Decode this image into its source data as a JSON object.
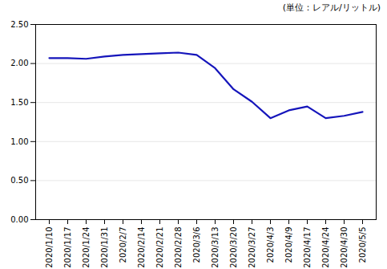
{
  "chart_data": {
    "type": "line",
    "annotations": [
      "(単位：レアル/リットル)"
    ],
    "categories": [
      "2020/1/10",
      "2020/1/17",
      "2020/1/24",
      "2020/1/31",
      "2020/2/7",
      "2020/2/14",
      "2020/2/21",
      "2020/2/28",
      "2020/3/6",
      "2020/3/13",
      "2020/3/20",
      "2020/3/27",
      "2020/4/3",
      "2020/4/9",
      "2020/4/17",
      "2020/4/24",
      "2020/4/30",
      "2020/5/5"
    ],
    "values": [
      2.07,
      2.07,
      2.06,
      2.09,
      2.11,
      2.12,
      2.13,
      2.14,
      2.11,
      1.94,
      1.67,
      1.51,
      1.3,
      1.4,
      1.45,
      1.3,
      1.33,
      1.38
    ],
    "color": "#1515bb",
    "ylim": [
      0.0,
      2.5
    ],
    "yticks": [
      {
        "value": 0.0,
        "label": "0.00"
      },
      {
        "value": 0.5,
        "label": "0.50"
      },
      {
        "value": 1.0,
        "label": "1.00"
      },
      {
        "value": 1.5,
        "label": "1.50"
      },
      {
        "value": 2.0,
        "label": "2.00"
      },
      {
        "value": 2.5,
        "label": "2.50"
      }
    ],
    "grid": true
  }
}
